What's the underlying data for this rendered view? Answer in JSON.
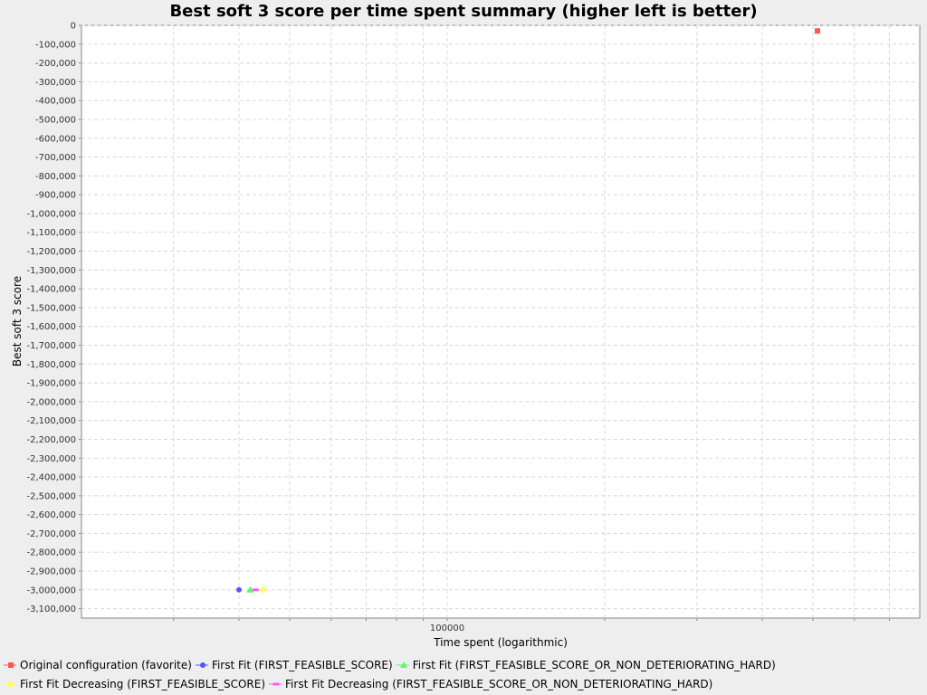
{
  "chart_data": {
    "type": "scatter",
    "title": "Best soft 3 score per time spent summary (higher left is better)",
    "xlabel": "Time spent (logarithmic)",
    "ylabel": "Best soft 3 score",
    "x_scale": "log",
    "xlim": [
      20000,
      800000
    ],
    "ylim": [
      -3150000,
      0
    ],
    "x_tick_labels": [
      {
        "value": 100000,
        "label": "100000"
      }
    ],
    "y_tick_labels": [
      "0",
      "-100,000",
      "-200,000",
      "-300,000",
      "-400,000",
      "-500,000",
      "-600,000",
      "-700,000",
      "-800,000",
      "-900,000",
      "-1,000,000",
      "-1,100,000",
      "-1,200,000",
      "-1,300,000",
      "-1,400,000",
      "-1,500,000",
      "-1,600,000",
      "-1,700,000",
      "-1,800,000",
      "-1,900,000",
      "-2,000,000",
      "-2,100,000",
      "-2,200,000",
      "-2,300,000",
      "-2,400,000",
      "-2,500,000",
      "-2,600,000",
      "-2,700,000",
      "-2,800,000",
      "-2,900,000",
      "-3,000,000",
      "-3,100,000"
    ],
    "grid": true,
    "legend_position": "bottom",
    "series": [
      {
        "name": "Original configuration (favorite)",
        "color": "#ff5555",
        "marker": "square",
        "points": [
          {
            "x": 510000,
            "y": -30000
          }
        ]
      },
      {
        "name": "First Fit (FIRST_FEASIBLE_SCORE)",
        "color": "#5555ff",
        "marker": "circle",
        "points": [
          {
            "x": 40000,
            "y": -3000000
          }
        ]
      },
      {
        "name": "First Fit (FIRST_FEASIBLE_SCORE_OR_NON_DETERIORATING_HARD)",
        "color": "#55ff55",
        "marker": "triangle",
        "points": [
          {
            "x": 42000,
            "y": -3000000
          }
        ]
      },
      {
        "name": "First Fit Decreasing (FIRST_FEASIBLE_SCORE)",
        "color": "#ffff55",
        "marker": "diamond",
        "points": [
          {
            "x": 44500,
            "y": -3000000
          }
        ]
      },
      {
        "name": "First Fit Decreasing (FIRST_FEASIBLE_SCORE_OR_NON_DETERIORATING_HARD)",
        "color": "#ff55ff",
        "marker": "rect-h",
        "points": [
          {
            "x": 43000,
            "y": -3000000
          }
        ]
      }
    ]
  }
}
